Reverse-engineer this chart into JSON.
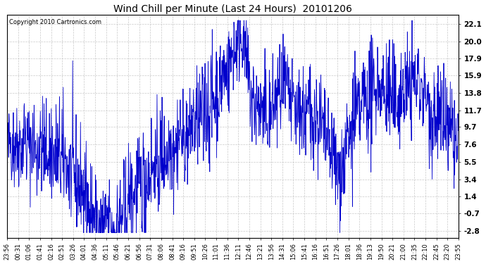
{
  "title": "Wind Chill per Minute (Last 24 Hours)  20101206",
  "copyright_text": "Copyright 2010 Cartronics.com",
  "line_color": "#0000CC",
  "background_color": "#FFFFFF",
  "plot_bg_color": "#FFFFFF",
  "grid_color": "#BBBBBB",
  "yticks": [
    -2.8,
    -0.7,
    1.4,
    3.4,
    5.5,
    7.6,
    9.7,
    11.7,
    13.8,
    15.9,
    17.9,
    20.0,
    22.1
  ],
  "ylim": [
    -3.6,
    23.2
  ],
  "num_points": 1440,
  "seed": 42,
  "x_tick_labels": [
    "23:56",
    "00:31",
    "01:06",
    "01:41",
    "02:16",
    "02:51",
    "03:26",
    "04:01",
    "04:36",
    "05:11",
    "05:46",
    "06:21",
    "06:56",
    "07:31",
    "08:06",
    "08:41",
    "09:16",
    "09:51",
    "10:26",
    "11:01",
    "11:36",
    "12:11",
    "12:46",
    "13:21",
    "13:56",
    "14:31",
    "15:06",
    "15:41",
    "16:16",
    "16:51",
    "17:26",
    "18:01",
    "18:36",
    "19:13",
    "19:50",
    "20:21",
    "21:00",
    "21:35",
    "22:10",
    "22:45",
    "23:20",
    "23:55"
  ],
  "figsize": [
    6.9,
    3.75
  ],
  "dpi": 100,
  "title_fontsize": 10,
  "tick_fontsize": 6,
  "copyright_fontsize": 6,
  "ytick_fontsize": 7.5,
  "linewidth": 0.6
}
